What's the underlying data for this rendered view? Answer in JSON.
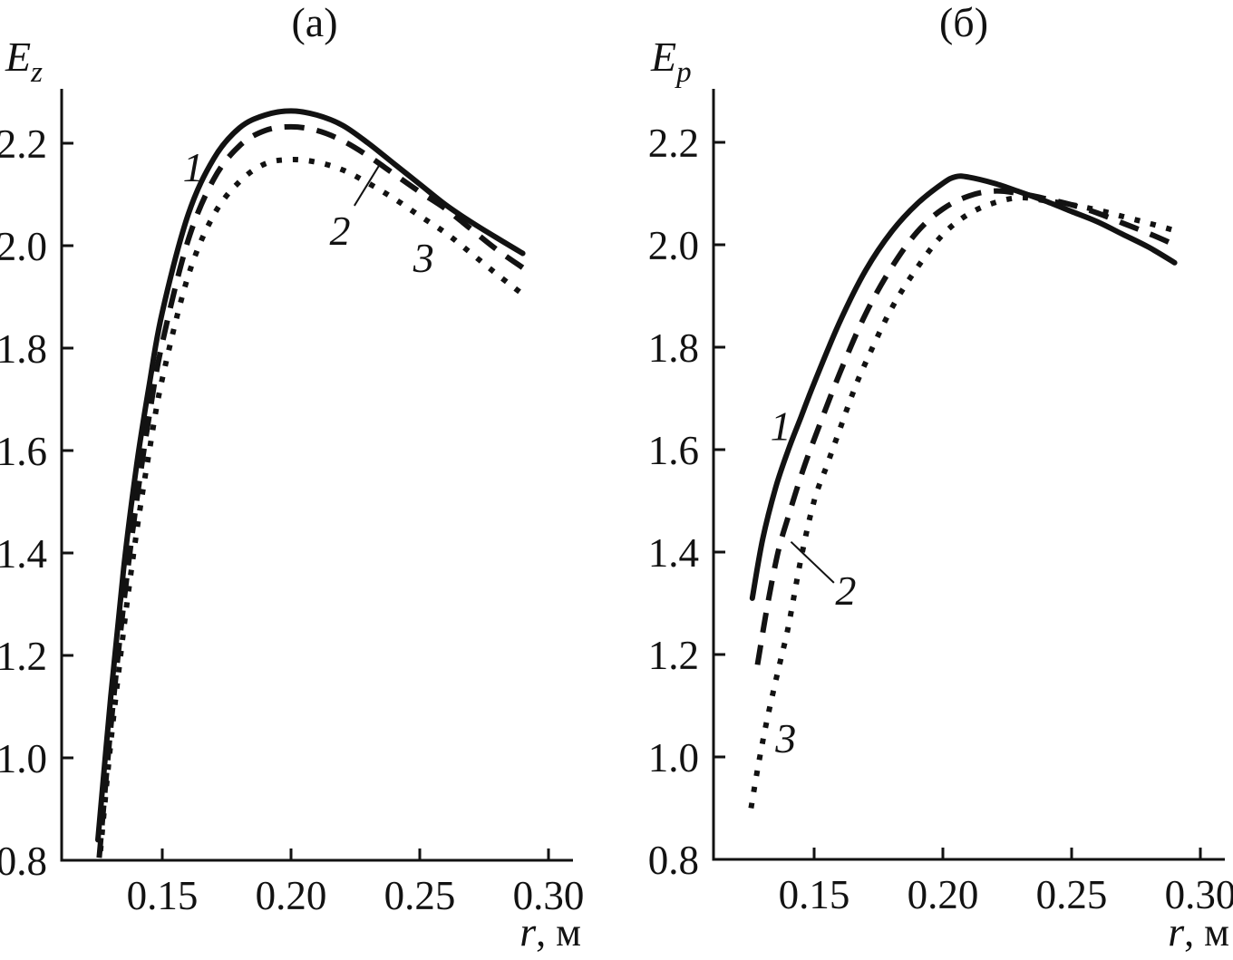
{
  "figure": {
    "background": "#ffffff",
    "ink": "#121212",
    "panels": [
      {
        "title": "(a)",
        "ylabel_base": "E",
        "ylabel_sub": "z",
        "xlabel_var": "r",
        "xlabel_unit": ", м"
      },
      {
        "title": "(б)",
        "ylabel_base": "E",
        "ylabel_sub": "p",
        "xlabel_var": "r",
        "xlabel_unit": ", м"
      }
    ]
  },
  "chart_data": [
    {
      "type": "line",
      "panel": "a",
      "title": "(a)",
      "xlabel": "r, м",
      "ylabel": "E_z",
      "xlim": [
        0.111,
        0.3095
      ],
      "ylim": [
        0.8,
        2.306
      ],
      "grid": false,
      "legend": "inline-numbered-labels",
      "x_ticks": [
        0.15,
        0.2,
        0.25,
        0.3
      ],
      "x_tick_labels": [
        "0.15",
        "0.20",
        "0.25",
        "0.30"
      ],
      "y_ticks": [
        0.8,
        1.0,
        1.2,
        1.4,
        1.6,
        1.8,
        2.0,
        2.2
      ],
      "y_tick_labels": [
        "0.8",
        "1.0",
        "1.2",
        "1.4",
        "1.6",
        "1.8",
        "2.0",
        "2.2"
      ],
      "series": [
        {
          "name": "1",
          "style": "solid",
          "x": [
            0.125,
            0.13,
            0.135,
            0.14,
            0.145,
            0.15,
            0.16,
            0.17,
            0.18,
            0.19,
            0.2,
            0.21,
            0.22,
            0.23,
            0.24,
            0.25,
            0.26,
            0.27,
            0.28,
            0.29
          ],
          "y": [
            0.84,
            1.12,
            1.37,
            1.57,
            1.73,
            1.87,
            2.06,
            2.17,
            2.23,
            2.255,
            2.263,
            2.255,
            2.235,
            2.2,
            2.16,
            2.12,
            2.08,
            2.046,
            2.015,
            1.985
          ]
        },
        {
          "name": "2",
          "style": "dashed",
          "x": [
            0.1255,
            0.13,
            0.135,
            0.14,
            0.145,
            0.15,
            0.16,
            0.17,
            0.18,
            0.19,
            0.2,
            0.21,
            0.22,
            0.23,
            0.24,
            0.25,
            0.26,
            0.27,
            0.28,
            0.29
          ],
          "y": [
            0.805,
            1.06,
            1.3,
            1.5,
            1.67,
            1.81,
            2.01,
            2.13,
            2.195,
            2.225,
            2.232,
            2.225,
            2.205,
            2.175,
            2.14,
            2.105,
            2.072,
            2.032,
            1.992,
            1.957
          ]
        },
        {
          "name": "3",
          "style": "dotted",
          "x": [
            0.126,
            0.13,
            0.135,
            0.14,
            0.145,
            0.15,
            0.16,
            0.17,
            0.18,
            0.19,
            0.2,
            0.21,
            0.22,
            0.23,
            0.24,
            0.25,
            0.26,
            0.27,
            0.28,
            0.29
          ],
          "y": [
            0.818,
            1.03,
            1.25,
            1.44,
            1.6,
            1.74,
            1.94,
            2.06,
            2.125,
            2.16,
            2.168,
            2.163,
            2.148,
            2.122,
            2.092,
            2.058,
            2.025,
            1.985,
            1.944,
            1.905
          ]
        }
      ],
      "annotations": {
        "labels": [
          {
            "text": "1",
            "x": 0.162,
            "y": 2.152
          },
          {
            "text": "2",
            "x": 0.219,
            "y": 2.028
          },
          {
            "text": "3",
            "x": 0.2515,
            "y": 1.975
          }
        ],
        "leader_lines": [
          {
            "x1": 0.2246,
            "y1": 2.078,
            "x2": 0.2345,
            "y2": 2.159
          }
        ]
      }
    },
    {
      "type": "line",
      "panel": "б",
      "title": "(б)",
      "xlabel": "r, м",
      "ylabel": "E_p",
      "xlim": [
        0.111,
        0.3095
      ],
      "ylim": [
        0.8,
        2.304
      ],
      "grid": false,
      "legend": "inline-numbered-labels",
      "x_ticks": [
        0.15,
        0.2,
        0.25,
        0.3
      ],
      "x_tick_labels": [
        "0.15",
        "0.20",
        "0.25",
        "0.30"
      ],
      "y_ticks": [
        0.8,
        1.0,
        1.2,
        1.4,
        1.6,
        1.8,
        2.0,
        2.2
      ],
      "y_tick_labels": [
        "0.8",
        "1.0",
        "1.2",
        "1.4",
        "1.6",
        "1.8",
        "2.0",
        "2.2"
      ],
      "series": [
        {
          "name": "1",
          "style": "solid",
          "x": [
            0.126,
            0.13,
            0.135,
            0.14,
            0.145,
            0.15,
            0.16,
            0.17,
            0.18,
            0.19,
            0.2,
            0.205,
            0.21,
            0.22,
            0.23,
            0.24,
            0.25,
            0.26,
            0.27,
            0.28,
            0.29
          ],
          "y": [
            1.31,
            1.425,
            1.525,
            1.6,
            1.665,
            1.73,
            1.85,
            1.95,
            2.025,
            2.08,
            2.12,
            2.133,
            2.132,
            2.12,
            2.103,
            2.085,
            2.065,
            2.045,
            2.02,
            1.995,
            1.965
          ]
        },
        {
          "name": "2",
          "style": "dashed",
          "x": [
            0.128,
            0.132,
            0.136,
            0.14,
            0.145,
            0.15,
            0.16,
            0.17,
            0.18,
            0.19,
            0.2,
            0.21,
            0.22,
            0.23,
            0.24,
            0.25,
            0.26,
            0.27,
            0.28,
            0.29
          ],
          "y": [
            1.18,
            1.3,
            1.4,
            1.47,
            1.55,
            1.62,
            1.75,
            1.865,
            1.955,
            2.025,
            2.07,
            2.095,
            2.105,
            2.1,
            2.09,
            2.078,
            2.062,
            2.042,
            2.022,
            2.0
          ]
        },
        {
          "name": "3",
          "style": "dotted",
          "x": [
            0.1255,
            0.128,
            0.131,
            0.134,
            0.137,
            0.14,
            0.145,
            0.15,
            0.155,
            0.16,
            0.165,
            0.17,
            0.18,
            0.19,
            0.2,
            0.21,
            0.22,
            0.23,
            0.24,
            0.25,
            0.26,
            0.27,
            0.28,
            0.29
          ],
          "y": [
            0.9,
            0.975,
            1.055,
            1.125,
            1.19,
            1.255,
            1.39,
            1.5,
            1.57,
            1.64,
            1.71,
            1.77,
            1.875,
            1.955,
            2.02,
            2.06,
            2.082,
            2.092,
            2.086,
            2.078,
            2.068,
            2.055,
            2.042,
            2.028
          ]
        }
      ],
      "annotations": {
        "labels": [
          {
            "text": "1",
            "x": 0.137,
            "y": 1.645
          },
          {
            "text": "2",
            "x": 0.1623,
            "y": 1.324
          },
          {
            "text": "3",
            "x": 0.139,
            "y": 1.035
          }
        ],
        "leader_lines": [
          {
            "x1": 0.141,
            "y1": 1.42,
            "x2": 0.1577,
            "y2": 1.34
          }
        ]
      }
    }
  ]
}
